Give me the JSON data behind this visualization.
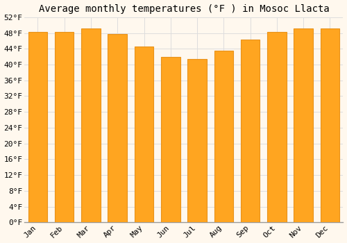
{
  "months": [
    "Jan",
    "Feb",
    "Mar",
    "Apr",
    "May",
    "Jun",
    "Jul",
    "Aug",
    "Sep",
    "Oct",
    "Nov",
    "Dec"
  ],
  "values": [
    48.2,
    48.2,
    49.1,
    47.7,
    44.6,
    41.9,
    41.4,
    43.5,
    46.3,
    48.2,
    49.1,
    49.1
  ],
  "bar_color": "#FFA520",
  "bar_edge_color": "#E8921A",
  "title": "Average monthly temperatures (°F ) in Mosoc Llacta",
  "ylim": [
    0,
    52
  ],
  "yticks": [
    0,
    4,
    8,
    12,
    16,
    20,
    24,
    28,
    32,
    36,
    40,
    44,
    48,
    52
  ],
  "ytick_labels": [
    "0°F",
    "4°F",
    "8°F",
    "12°F",
    "16°F",
    "20°F",
    "24°F",
    "28°F",
    "32°F",
    "36°F",
    "40°F",
    "44°F",
    "48°F",
    "52°F"
  ],
  "background_color": "#FFF8EE",
  "grid_color": "#DDDDDD",
  "title_fontsize": 10,
  "tick_fontsize": 8,
  "bar_width": 0.72
}
